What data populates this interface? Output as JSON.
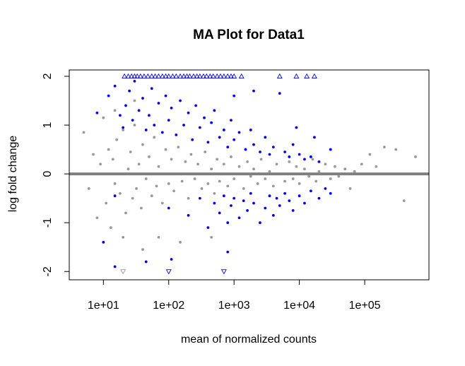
{
  "chart_data": {
    "type": "scatter",
    "title": "MA Plot for Data1",
    "xlabel": "mean of normalized counts",
    "ylabel": "log fold change",
    "xscale": "log",
    "xlim": [
      3,
      964000
    ],
    "ylim": [
      -2.17,
      2.13
    ],
    "xticks": [
      {
        "value": 10,
        "label": "1e+01"
      },
      {
        "value": 100,
        "label": "1e+02"
      },
      {
        "value": 1000,
        "label": "1e+03"
      },
      {
        "value": 10000,
        "label": "1e+04"
      },
      {
        "value": 100000,
        "label": "1e+05"
      }
    ],
    "yticks": [
      -2,
      -1,
      0,
      1,
      2
    ],
    "hline": 0,
    "hline_color": "#808080",
    "series": [
      {
        "color": "#999999",
        "marker": "circle",
        "x": [
          5,
          6,
          7,
          8,
          9,
          10,
          11,
          12,
          13,
          14,
          15,
          16,
          18,
          20,
          22,
          24,
          26,
          28,
          30,
          32,
          35,
          38,
          40,
          45,
          50,
          55,
          60,
          65,
          70,
          80,
          90,
          100,
          110,
          120,
          140,
          160,
          180,
          200,
          220,
          250,
          280,
          320,
          360,
          400,
          450,
          500,
          550,
          600,
          700,
          800,
          900,
          1000,
          1200,
          1400,
          1600,
          1800,
          2000,
          2300,
          2600,
          3000,
          3500,
          4000,
          4500,
          5000,
          6000,
          7000,
          8000,
          9000,
          10000,
          12000,
          14000,
          16000,
          18000,
          20000,
          25000,
          30000,
          35000,
          40000,
          50000,
          60000,
          70000,
          90000,
          120000,
          150000,
          200000,
          300000,
          400000,
          600000,
          20,
          40,
          70,
          150,
          450,
          30,
          15
        ],
        "values": [
          0.85,
          -0.3,
          0.4,
          -0.9,
          0.2,
          1.15,
          -0.6,
          0.5,
          -1.1,
          0.3,
          -0.2,
          0.7,
          -0.4,
          0.9,
          -0.8,
          0.1,
          0.45,
          -0.5,
          1.0,
          -0.3,
          0.2,
          -0.7,
          0.6,
          -0.1,
          0.35,
          -0.45,
          0.75,
          -0.25,
          0.15,
          -0.6,
          0.5,
          -0.2,
          0.3,
          -0.35,
          0.55,
          -0.15,
          0.25,
          -0.5,
          0.4,
          -0.1,
          0.2,
          -0.3,
          0.45,
          -0.2,
          0.1,
          -0.4,
          0.3,
          -0.15,
          0.2,
          -0.25,
          0.35,
          -0.1,
          0.15,
          -0.3,
          0.25,
          -0.05,
          0.1,
          -0.2,
          0.3,
          -0.1,
          0.05,
          -0.25,
          0.2,
          0.0,
          -0.15,
          0.25,
          -0.1,
          0.15,
          -0.2,
          0.1,
          -0.05,
          0.3,
          -0.15,
          0.05,
          0.2,
          -0.1,
          0.15,
          -0.05,
          0.1,
          -0.3,
          0.05,
          0.2,
          0.4,
          0.15,
          0.55,
          0.5,
          -0.55,
          0.35,
          -1.3,
          -1.55,
          -1.3,
          -1.4,
          -1.3,
          1.5,
          1.3
        ]
      },
      {
        "color": "#0000ff",
        "marker": "circle",
        "x": [
          8,
          12,
          15,
          18,
          20,
          22,
          25,
          28,
          30,
          35,
          40,
          45,
          50,
          55,
          60,
          70,
          80,
          90,
          100,
          110,
          130,
          150,
          170,
          200,
          230,
          260,
          300,
          350,
          400,
          450,
          500,
          600,
          700,
          800,
          900,
          1000,
          1200,
          1500,
          1800,
          2000,
          2500,
          3000,
          3500,
          4000,
          5000,
          6000,
          7000,
          8000,
          10000,
          12000,
          15000,
          20000,
          30000,
          2000,
          1000,
          9000,
          17000,
          10,
          15,
          100,
          200,
          300,
          400,
          500,
          600,
          700,
          800,
          900,
          1000,
          1200,
          1400,
          1600,
          1800,
          2000,
          2500,
          3000,
          3500,
          4000,
          4500,
          5000,
          6000,
          7000,
          8000,
          10000,
          12000,
          15000,
          20000,
          25000,
          30000,
          45,
          110,
          15,
          800
        ],
        "values": [
          1.25,
          1.6,
          1.8,
          1.2,
          0.95,
          1.4,
          1.7,
          1.1,
          1.9,
          1.3,
          1.55,
          0.9,
          1.2,
          1.75,
          1.0,
          1.45,
          0.85,
          1.6,
          1.1,
          1.35,
          0.8,
          1.5,
          1.0,
          1.25,
          0.7,
          1.4,
          0.95,
          1.15,
          0.65,
          1.05,
          1.3,
          0.75,
          0.9,
          0.55,
          1.1,
          0.7,
          0.85,
          0.5,
          0.9,
          0.6,
          0.45,
          0.75,
          0.4,
          0.55,
          1.65,
          0.45,
          0.35,
          0.6,
          0.4,
          0.3,
          0.35,
          0.25,
          0.5,
          1.7,
          1.6,
          0.95,
          0.75,
          -1.4,
          -0.45,
          -0.7,
          -0.85,
          -0.5,
          -1.1,
          -0.6,
          -0.8,
          -0.45,
          -1.0,
          -0.65,
          -0.5,
          -0.9,
          -0.55,
          -0.75,
          -0.4,
          -0.6,
          -1.0,
          -0.7,
          -0.45,
          -0.85,
          -0.5,
          -0.65,
          -0.4,
          -0.55,
          -0.75,
          -0.45,
          -0.6,
          -0.35,
          -0.5,
          -0.3,
          -0.4,
          -1.8,
          -1.75,
          -1.9,
          -1.6
        ]
      },
      {
        "color": "#0000ff",
        "marker": "triangle-up",
        "x": [
          21,
          24,
          27,
          30,
          33,
          37,
          42,
          48,
          55,
          62,
          70,
          80,
          90,
          100,
          115,
          130,
          150,
          170,
          190,
          210,
          240,
          270,
          300,
          340,
          380,
          430,
          480,
          550,
          620,
          700,
          800,
          900,
          1000,
          1300,
          5000,
          9000,
          13000,
          17000
        ],
        "values": [
          2,
          2,
          2,
          2,
          2,
          2,
          2,
          2,
          2,
          2,
          2,
          2,
          2,
          2,
          2,
          2,
          2,
          2,
          2,
          2,
          2,
          2,
          2,
          2,
          2,
          2,
          2,
          2,
          2,
          2,
          2,
          2,
          2,
          2,
          2,
          2,
          2,
          2
        ]
      },
      {
        "color": "#0000ff",
        "marker": "triangle-down",
        "x": [
          100,
          700
        ],
        "values": [
          -2,
          -2
        ]
      },
      {
        "color": "#999999",
        "marker": "triangle-down",
        "x": [
          20
        ],
        "values": [
          -2
        ]
      }
    ]
  }
}
